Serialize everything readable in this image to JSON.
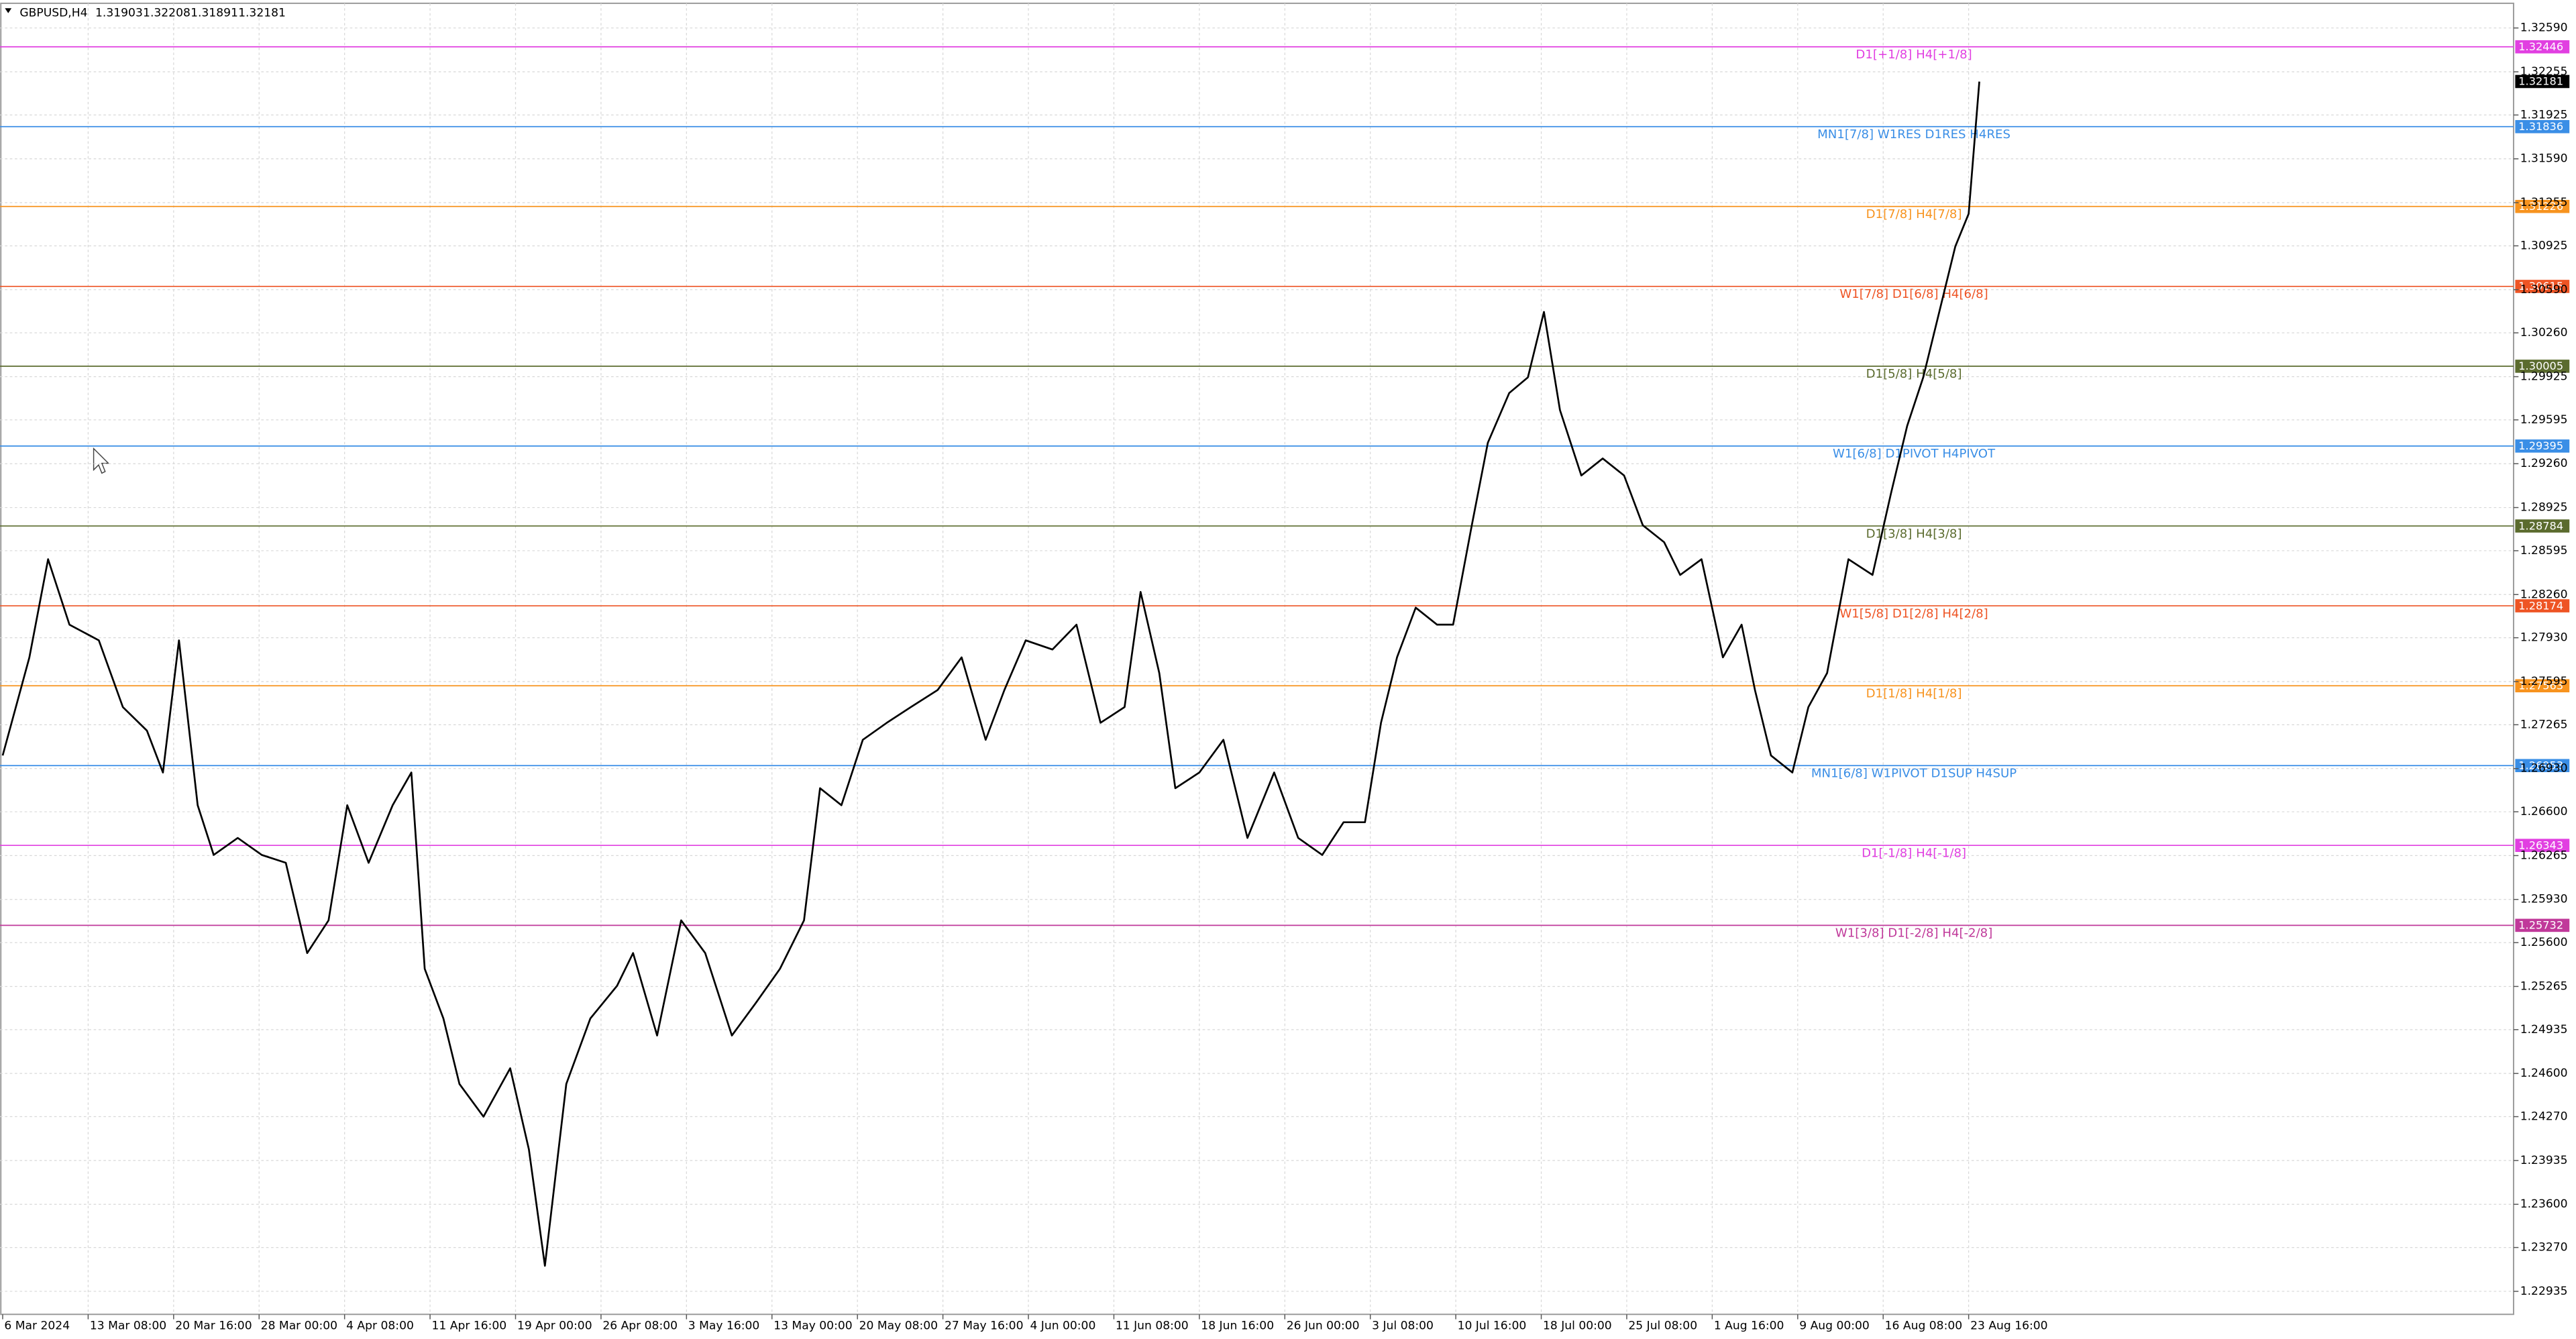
{
  "chart_data": {
    "type": "line",
    "symbol": "GBPUSD,H4",
    "ohlc": [
      1.31903,
      1.32208,
      1.31891,
      1.32181
    ],
    "x": [
      0,
      10,
      17,
      25,
      36,
      45,
      54,
      60,
      66,
      73,
      79,
      88,
      97,
      106,
      114,
      122,
      129,
      137,
      146,
      153,
      158,
      165,
      171,
      180,
      190,
      197,
      203,
      211,
      220,
      230,
      236,
      245,
      254,
      263,
      273,
      282,
      291,
      300,
      306,
      314,
      322,
      331,
      340,
      350,
      359,
      368,
      375,
      383,
      393,
      402,
      411,
      420,
      426,
      433,
      439,
      448,
      457,
      466,
      476,
      485,
      494,
      502,
      510,
      516,
      522,
      529,
      537,
      543,
      550,
      556,
      564,
      571,
      577,
      583,
      591,
      599,
      607,
      614,
      622,
      628,
      636,
      644,
      651,
      656,
      662,
      670,
      676,
      683,
      691,
      700,
      707,
      713,
      719,
      725,
      731,
      736,
      740
    ],
    "series": [
      {
        "color": "#000000",
        "values": [
          1.2703,
          1.2778,
          1.2853,
          1.2803,
          1.2791,
          1.274,
          1.2722,
          1.269,
          1.2791,
          1.2665,
          1.2627,
          1.264,
          1.2627,
          1.2621,
          1.2552,
          1.2577,
          1.2665,
          1.2621,
          1.2665,
          1.269,
          1.254,
          1.2502,
          1.2452,
          1.2427,
          1.2464,
          1.2402,
          1.2313,
          1.2452,
          1.2502,
          1.2527,
          1.2552,
          1.2489,
          1.2577,
          1.2552,
          1.2489,
          1.2514,
          1.254,
          1.2577,
          1.2678,
          1.2665,
          1.2715,
          1.2728,
          1.274,
          1.2753,
          1.2778,
          1.2715,
          1.2753,
          1.2791,
          1.2784,
          1.2803,
          1.2728,
          1.274,
          1.2828,
          1.2766,
          1.2678,
          1.269,
          1.2715,
          1.264,
          1.269,
          1.264,
          1.2627,
          1.2652,
          1.2652,
          1.2728,
          1.2778,
          1.2816,
          1.2803,
          1.2803,
          1.2879,
          1.2942,
          1.298,
          1.2992,
          1.3042,
          1.2967,
          1.2917,
          1.293,
          1.2917,
          1.2879,
          1.2866,
          1.2841,
          1.2853,
          1.2778,
          1.2803,
          1.2753,
          1.2703,
          1.269,
          1.274,
          1.2766,
          1.2853,
          1.2841,
          1.2904,
          1.2955,
          1.2992,
          1.3042,
          1.3092,
          1.3117,
          1.3218
        ]
      }
    ],
    "xlim": [
      -1,
      940
    ],
    "xticks": [
      {
        "value": 0,
        "label": "6 Mar 2024"
      },
      {
        "value": 32,
        "label": "13 Mar 08:00"
      },
      {
        "value": 64,
        "label": "20 Mar 16:00"
      },
      {
        "value": 96,
        "label": "28 Mar 00:00"
      },
      {
        "value": 128,
        "label": "4 Apr 08:00"
      },
      {
        "value": 160,
        "label": "11 Apr 16:00"
      },
      {
        "value": 192,
        "label": "19 Apr 00:00"
      },
      {
        "value": 224,
        "label": "26 Apr 08:00"
      },
      {
        "value": 256,
        "label": "3 May 16:00"
      },
      {
        "value": 288,
        "label": "13 May 00:00"
      },
      {
        "value": 320,
        "label": "20 May 08:00"
      },
      {
        "value": 352,
        "label": "27 May 16:00"
      },
      {
        "value": 384,
        "label": "4 Jun 00:00"
      },
      {
        "value": 416,
        "label": "11 Jun 08:00"
      },
      {
        "value": 448,
        "label": "18 Jun 16:00"
      },
      {
        "value": 480,
        "label": "26 Jun 00:00"
      },
      {
        "value": 512,
        "label": "3 Jul 08:00"
      },
      {
        "value": 544,
        "label": "10 Jul 16:00"
      },
      {
        "value": 576,
        "label": "18 Jul 00:00"
      },
      {
        "value": 608,
        "label": "25 Jul 08:00"
      },
      {
        "value": 640,
        "label": "1 Aug 16:00"
      },
      {
        "value": 672,
        "label": "9 Aug 00:00"
      },
      {
        "value": 704,
        "label": "16 Aug 08:00"
      },
      {
        "value": 736,
        "label": "23 Aug 16:00"
      }
    ],
    "ylim": [
      1.22759,
      1.32741
    ],
    "yticks": [
      {
        "value": 1.3259,
        "label": "1.32590"
      },
      1.32255,
      1.31925,
      {
        "value": 1.3159,
        "label": "1.31590"
      },
      1.31255,
      1.30925,
      {
        "value": 1.3059,
        "label": "1.30590"
      },
      {
        "value": 1.3026,
        "label": "1.30260"
      },
      1.29925,
      1.29595,
      {
        "value": 1.2926,
        "label": "1.29260"
      },
      1.28925,
      1.28595,
      {
        "value": 1.2826,
        "label": "1.28260"
      },
      {
        "value": 1.2793,
        "label": "1.27930"
      },
      1.27595,
      1.27265,
      {
        "value": 1.2693,
        "label": "1.26930"
      },
      {
        "value": 1.266,
        "label": "1.26600"
      },
      1.26265,
      {
        "value": 1.2593,
        "label": "1.25930"
      },
      {
        "value": 1.256,
        "label": "1.25600"
      },
      1.25265,
      1.24935,
      {
        "value": 1.246,
        "label": "1.24600"
      },
      {
        "value": 1.2427,
        "label": "1.24270"
      },
      1.23935,
      {
        "value": 1.236,
        "label": "1.23600"
      },
      {
        "value": 1.2327,
        "label": "1.23270"
      },
      1.22935
    ],
    "grid": true,
    "levels": [
      {
        "value": 1.32446,
        "label": "D1[+1/8] H4[+1/8]",
        "color": "#e13fe1"
      },
      {
        "value": 1.31836,
        "label": "MN1[7/8] W1RES D1RES H4RES",
        "color": "#3a8ee6"
      },
      {
        "value": 1.31226,
        "label": "D1[7/8] H4[7/8]",
        "color": "#f7931e"
      },
      {
        "value": 1.30615,
        "label": "W1[7/8] D1[6/8] H4[6/8]",
        "color": "#ee5424"
      },
      {
        "value": 1.30005,
        "label": "D1[5/8] H4[5/8]",
        "color": "#5b6b2e"
      },
      {
        "value": 1.29395,
        "label": "W1[6/8] D1PIVOT H4PIVOT",
        "color": "#3a8ee6"
      },
      {
        "value": 1.28784,
        "label": "D1[3/8] H4[3/8]",
        "color": "#5b6b2e"
      },
      {
        "value": 1.28174,
        "label": "W1[5/8] D1[2/8] H4[2/8]",
        "color": "#ee5424"
      },
      {
        "value": 1.27563,
        "label": "D1[1/8] H4[1/8]",
        "color": "#f7931e"
      },
      {
        "value": 1.26953,
        "label": "MN1[6/8] W1PIVOT D1SUP H4SUP",
        "color": "#3a8ee6"
      },
      {
        "value": 1.26343,
        "label": "D1[-1/8] H4[-1/8]",
        "color": "#e13fe1"
      },
      {
        "value": 1.25732,
        "label": "W1[3/8] D1[-2/8] H4[-2/8]",
        "color": "#c0399a"
      }
    ]
  }
}
